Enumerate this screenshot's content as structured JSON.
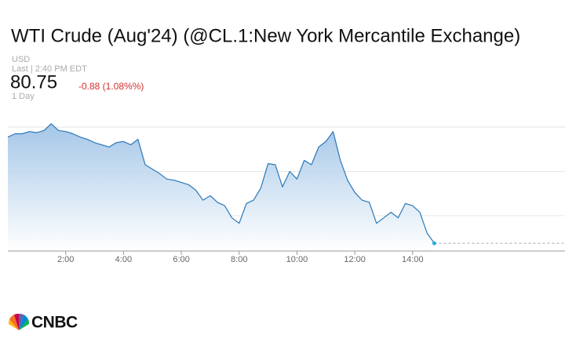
{
  "chart_data": {
    "type": "line",
    "title": "WTI Crude (Aug'24) (@CL.1:New York Mercantile Exchange)",
    "currency": "USD",
    "last_update": "Last | 2:40 PM EDT",
    "price": "80.75",
    "change": "-0.88 (1.08%%)",
    "period": "1 Day",
    "logo": "CNBC",
    "color": "#2a78b8",
    "x": [
      0,
      0.25,
      0.5,
      0.75,
      1,
      1.25,
      1.5,
      1.75,
      2,
      2.25,
      2.5,
      2.75,
      3,
      3.25,
      3.5,
      3.75,
      4,
      4.25,
      4.5,
      4.75,
      5,
      5.25,
      5.5,
      5.75,
      6,
      6.25,
      6.5,
      6.75,
      7,
      7.25,
      7.5,
      7.75,
      8,
      8.25,
      8.5,
      8.75,
      9,
      9.25,
      9.5,
      9.75,
      10,
      10.25,
      10.5,
      10.75,
      11,
      11.25,
      11.5,
      11.75,
      12,
      12.25,
      12.5,
      12.75,
      13,
      13.25,
      13.5,
      13.75,
      14,
      14.25,
      14.5,
      14.75
    ],
    "values": [
      81.71,
      81.74,
      81.74,
      81.76,
      81.75,
      81.77,
      81.83,
      81.77,
      81.76,
      81.74,
      81.71,
      81.69,
      81.66,
      81.64,
      81.62,
      81.66,
      81.67,
      81.64,
      81.69,
      81.46,
      81.42,
      81.38,
      81.33,
      81.32,
      81.3,
      81.28,
      81.23,
      81.14,
      81.18,
      81.12,
      81.09,
      80.98,
      80.93,
      81.11,
      81.14,
      81.25,
      81.47,
      81.46,
      81.26,
      81.4,
      81.33,
      81.5,
      81.46,
      81.62,
      81.67,
      81.76,
      81.5,
      81.32,
      81.21,
      81.14,
      81.12,
      80.93,
      80.98,
      81.03,
      80.98,
      81.11,
      81.09,
      81.03,
      80.84,
      80.75
    ],
    "xlim": [
      0,
      19.27
    ],
    "xticks": [
      {
        "value": 2,
        "label": "2:00"
      },
      {
        "value": 4,
        "label": "4:00"
      },
      {
        "value": 6,
        "label": "6:00"
      },
      {
        "value": 8,
        "label": "8:00"
      },
      {
        "value": 10,
        "label": "10:00"
      },
      {
        "value": 12,
        "label": "12:00"
      },
      {
        "value": 14,
        "label": "14:00"
      }
    ],
    "ylim": [
      80.68,
      81.85
    ],
    "yticks": [
      81.0,
      81.4,
      81.8
    ],
    "grid": true
  }
}
